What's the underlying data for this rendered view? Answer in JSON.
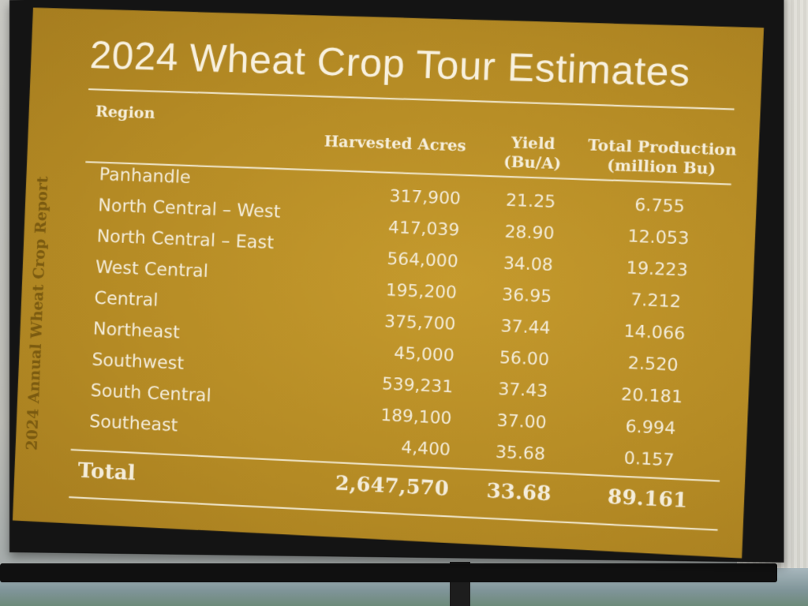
{
  "slide": {
    "title": "2024 Wheat Crop Tour Estimates",
    "side_label": "2024 Annual Wheat Crop Report",
    "colors": {
      "background": "#b48a24",
      "text": "#f3ecd8",
      "side_label": "#7a5a10"
    }
  },
  "table": {
    "headers": {
      "region": "Region",
      "acres": "Harvested Acres",
      "yield_line1": "Yield",
      "yield_line2": "(Bu/A)",
      "prod_line1": "Total Production",
      "prod_line2": "(million Bu)"
    },
    "rows": [
      {
        "region": "Panhandle",
        "acres": "317,900",
        "yield": "21.25",
        "production": "6.755"
      },
      {
        "region": "North Central – West",
        "acres": "417,039",
        "yield": "28.90",
        "production": "12.053"
      },
      {
        "region": "North Central – East",
        "acres": "564,000",
        "yield": "34.08",
        "production": "19.223"
      },
      {
        "region": "West Central",
        "acres": "195,200",
        "yield": "36.95",
        "production": "7.212"
      },
      {
        "region": "Central",
        "acres": "375,700",
        "yield": "37.44",
        "production": "14.066"
      },
      {
        "region": "Northeast",
        "acres": "45,000",
        "yield": "56.00",
        "production": "2.520"
      },
      {
        "region": "Southwest",
        "acres": "539,231",
        "yield": "37.43",
        "production": "20.181"
      },
      {
        "region": "South Central",
        "acres": "189,100",
        "yield": "37.00",
        "production": "6.994"
      },
      {
        "region": "Southeast",
        "acres": "4,400",
        "yield": "35.68",
        "production": "0.157"
      }
    ],
    "total": {
      "label": "Total",
      "acres": "2,647,570",
      "yield": "33.68",
      "production": "89.161"
    }
  }
}
